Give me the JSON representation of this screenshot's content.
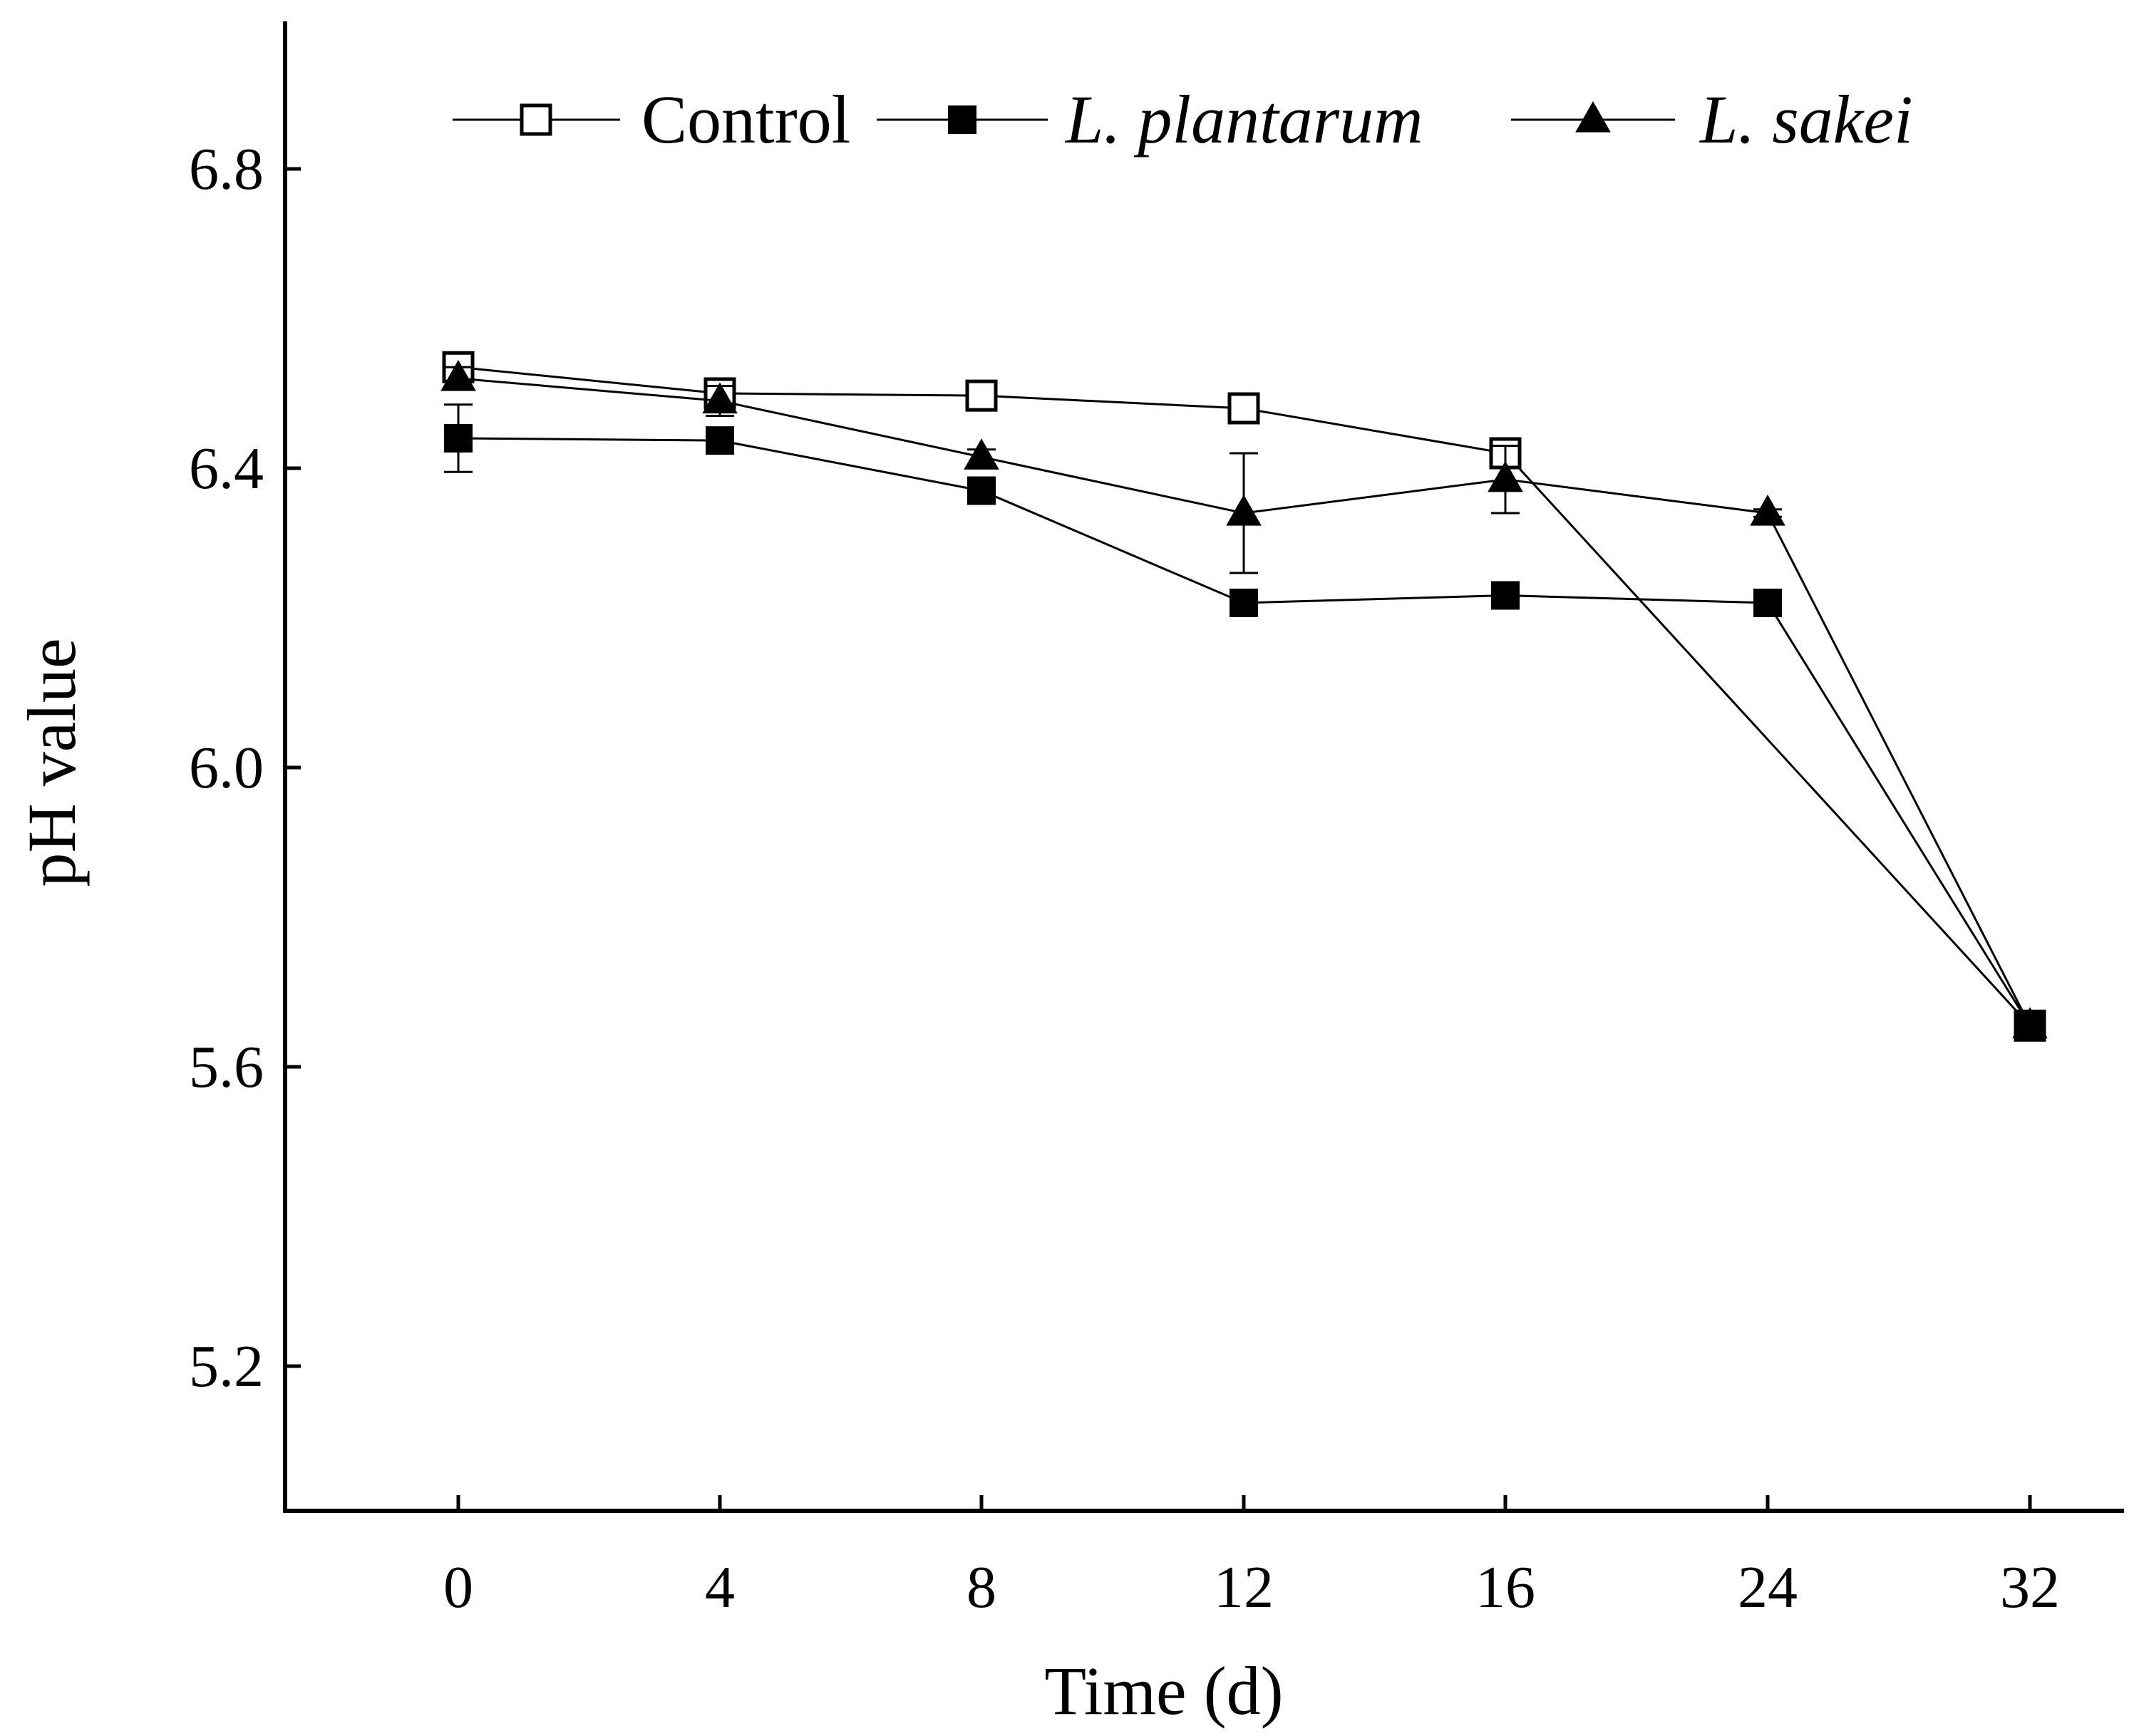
{
  "chart_data": {
    "type": "line",
    "title": "",
    "xlabel": "Time (d)",
    "ylabel": "pH value",
    "categories": [
      "0",
      "4",
      "8",
      "12",
      "16",
      "24",
      "32"
    ],
    "y_ticks": [
      "5.2",
      "5.6",
      "6.0",
      "6.4",
      "6.8"
    ],
    "ylim": [
      5.0,
      7.0
    ],
    "grid": false,
    "legend_position": "top",
    "series": [
      {
        "name": "Control",
        "marker": "open-square",
        "values": [
          6.535,
          6.5,
          6.497,
          6.48,
          6.42,
          null,
          5.655
        ],
        "errors": [
          0.01,
          0.005,
          0.005,
          0.01,
          0.01,
          null,
          0.005
        ]
      },
      {
        "name": "L. plantarum",
        "marker": "filled-square",
        "values": [
          6.44,
          6.437,
          6.37,
          6.22,
          6.23,
          6.22,
          5.655
        ],
        "errors": [
          0.045,
          0.01,
          0.01,
          0.01,
          0.005,
          0.005,
          0.005
        ]
      },
      {
        "name": "L. sakei",
        "marker": "filled-triangle",
        "values": [
          6.52,
          6.49,
          6.415,
          6.34,
          6.385,
          6.34,
          5.655
        ],
        "errors": [
          0.015,
          0.02,
          0.01,
          0.08,
          0.045,
          0.005,
          0.005
        ]
      }
    ]
  }
}
